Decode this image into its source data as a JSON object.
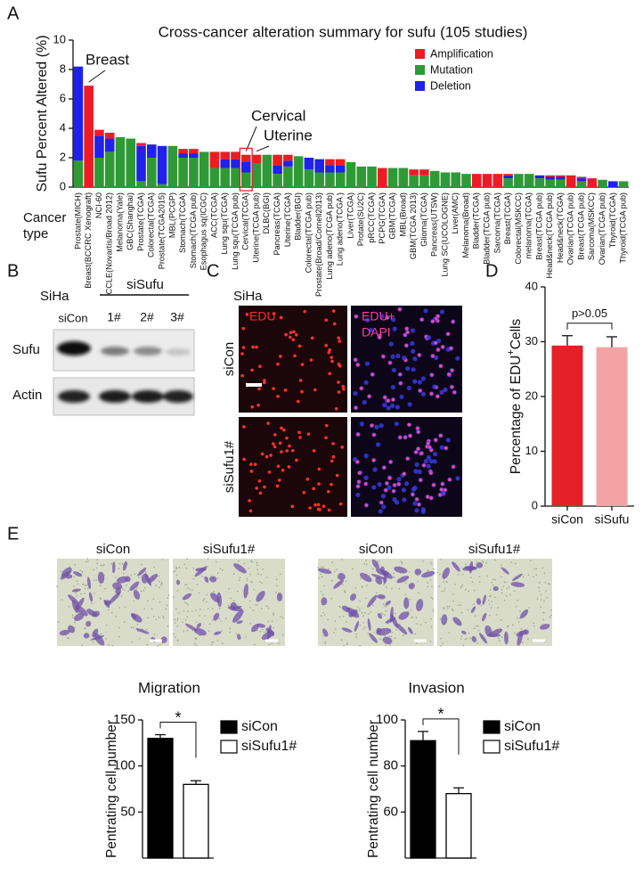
{
  "chart_data": [
    {
      "type": "bar",
      "stacked": true,
      "title": "Cross-cancer alteration summary for sufu (105 studies)",
      "y_label": "Sufu Percent Altered (%)",
      "x_label": "Cancer type",
      "categories": [
        "Prostate(MICH)",
        "Breast(BCCRC Xenograft)",
        "NCI-60",
        "CCLE(Novartis/Broad 2012)",
        "Melanoma(Yale)",
        "GBC(Shanghai)",
        "Prostate(TCGA)",
        "Colorectal(TCGA)",
        "Prostate(TCGA2015)",
        "MBL(PCGP)",
        "Stomach(TCGA)",
        "Stomach(TCGA pub)",
        "Esophagus sq(ICGC)",
        "ACC(TCGA)",
        "Lung squ(TCGA)",
        "Lung squ(TCGA pub)",
        "Cervical(TCGA)",
        "Uterine(TCGA pub)",
        "DLBC(BGI)",
        "Pancreas(TCGA)",
        "Uterine(TCGA)",
        "Bladder(BGI)",
        "Colorectal(TCGA pub)",
        "Prostate(Broad/Cornell2013)",
        "Lung adeno(TCGA pub)",
        "Lung adeno(TCGA )",
        "Liver(TCGA)",
        "Protate(SU2C)",
        "pRCC(TCGA)",
        "PCPG(TCGA)",
        "GBM(TCGA)",
        "MBL(Broad)",
        "GBM(TCGA 2013)",
        "Glioma(TCGA)",
        "Pancreas(UTSW)",
        "Lung SC(UCOLOGNE)",
        "Liver(AMC)",
        "Melanoma(Broad)",
        "Bladder(TCGA)",
        "Bladder(TCGA pub)",
        "Sarcoma(TCGA)",
        "Breast(TCGA)",
        "Colorectal(MSKCC)",
        "melanoma(TCGA)",
        "Breast(TCGA pub)",
        "Head&neck(TCGA pub)",
        "Head&neck(TCGA)",
        "Ovarian(TCGA pub)",
        "Breast(TCGA pub)",
        "Sarcoma(MSKCC)",
        "Ovarian(TCGA pub)",
        "Thyroid(TCGA)",
        "Thyroid(TCGA pub)"
      ],
      "series": [
        {
          "name": "Amplification",
          "color": "#ed1c24",
          "values": [
            0,
            6.9,
            0.4,
            0.4,
            0,
            0,
            0.2,
            0,
            0,
            0,
            0.3,
            0.3,
            0,
            1.1,
            0.5,
            0.5,
            0.5,
            0.6,
            0,
            0.7,
            0.4,
            0,
            0,
            0,
            0.4,
            0.4,
            0,
            0,
            0,
            1.3,
            0,
            0,
            0.4,
            0.4,
            0,
            0,
            0,
            0,
            0.9,
            0.9,
            0.9,
            0.1,
            0,
            0,
            0,
            0.1,
            0.1,
            0.8,
            0.1,
            0.6,
            0,
            0,
            0
          ]
        },
        {
          "name": "Mutation",
          "color": "#2f9a35",
          "values": [
            1.8,
            0,
            2.0,
            2.4,
            3.4,
            3.3,
            0.4,
            2.0,
            0.2,
            2.8,
            2.0,
            2.0,
            2.4,
            1.3,
            1.3,
            1.3,
            1.0,
            1.6,
            2.2,
            0.9,
            1.4,
            2.1,
            1.2,
            1.0,
            1.0,
            1.0,
            1.7,
            1.4,
            1.4,
            0,
            1.3,
            1.3,
            0.8,
            0.8,
            1.1,
            1.0,
            1.0,
            0.9,
            0,
            0,
            0,
            0.6,
            0.9,
            0.9,
            0.6,
            0.5,
            0.5,
            0,
            0.4,
            0,
            0.5,
            0,
            0.4
          ]
        },
        {
          "name": "Deletion",
          "color": "#1f22e8",
          "values": [
            6.4,
            0,
            1.5,
            0.9,
            0,
            0,
            2.4,
            0.9,
            2.6,
            0,
            0.3,
            0.3,
            0,
            0,
            0.6,
            0.6,
            0.7,
            0,
            0,
            0.6,
            0.4,
            0,
            0.8,
            0.9,
            0.5,
            0.5,
            0,
            0,
            0,
            0,
            0,
            0,
            0,
            0,
            0,
            0,
            0,
            0,
            0,
            0,
            0,
            0.2,
            0,
            0,
            0.2,
            0.2,
            0.2,
            0,
            0.2,
            0,
            0,
            0.4,
            0
          ]
        }
      ],
      "stack_order": [
        "Mutation",
        "Deletion",
        "Amplification"
      ],
      "annotations": [
        "Breast",
        "Cervical",
        "Uterine"
      ],
      "ylim": [
        0,
        10
      ],
      "yticks": [
        0,
        2,
        4,
        6,
        8,
        10
      ]
    },
    {
      "type": "bar",
      "y_label": "Percentage of EDU",
      "y_label_sup": "+",
      "y_label_suffix": "Cells",
      "categories": [
        "siCon",
        "siSufu"
      ],
      "values": [
        29.3,
        29.0
      ],
      "errors": [
        1.8,
        1.9
      ],
      "colors": [
        "#e42127",
        "#f4a3a5"
      ],
      "annotation": "p>0.05",
      "ylim": [
        0,
        40
      ],
      "yticks": [
        0,
        10,
        20,
        30,
        40
      ]
    },
    {
      "type": "bar",
      "title": "Migration",
      "legend": true,
      "y_label": "Pentrating cell number",
      "categories": [
        "siCon",
        "siSufu1#"
      ],
      "values": [
        130,
        80
      ],
      "errors": [
        4,
        4
      ],
      "colors": [
        "#000000",
        "#ffffff"
      ],
      "annotation": "*",
      "ylim": [
        0,
        150
      ],
      "yticks": [
        50,
        100,
        150
      ]
    },
    {
      "type": "bar",
      "title": "Invasion",
      "legend": true,
      "y_label": "Pentrating cell number",
      "categories": [
        "siCon",
        "siSufu1#"
      ],
      "values": [
        91,
        68
      ],
      "errors": [
        4,
        2.5
      ],
      "colors": [
        "#000000",
        "#ffffff"
      ],
      "annotation": "*",
      "ylim": [
        40,
        100
      ],
      "yticks": [
        60,
        80,
        100
      ]
    }
  ],
  "panel_labels": [
    "A",
    "B",
    "C",
    "D",
    "E"
  ],
  "blot": {
    "cell_line": "SiHa",
    "group": "siSufu",
    "lanes": [
      "siCon",
      "1#",
      "2#",
      "3#"
    ],
    "proteins": [
      "Sufu",
      "Actin"
    ]
  },
  "edu": {
    "cell_line": "SiHa",
    "channel": "EDU",
    "merge_label": [
      "EDU+",
      "DAPI"
    ],
    "rows": [
      "siCon",
      "siSufu1#"
    ]
  },
  "transwell": {
    "columns": [
      "siCon",
      "siSufu1#",
      "siCon",
      "siSufu1#"
    ]
  }
}
